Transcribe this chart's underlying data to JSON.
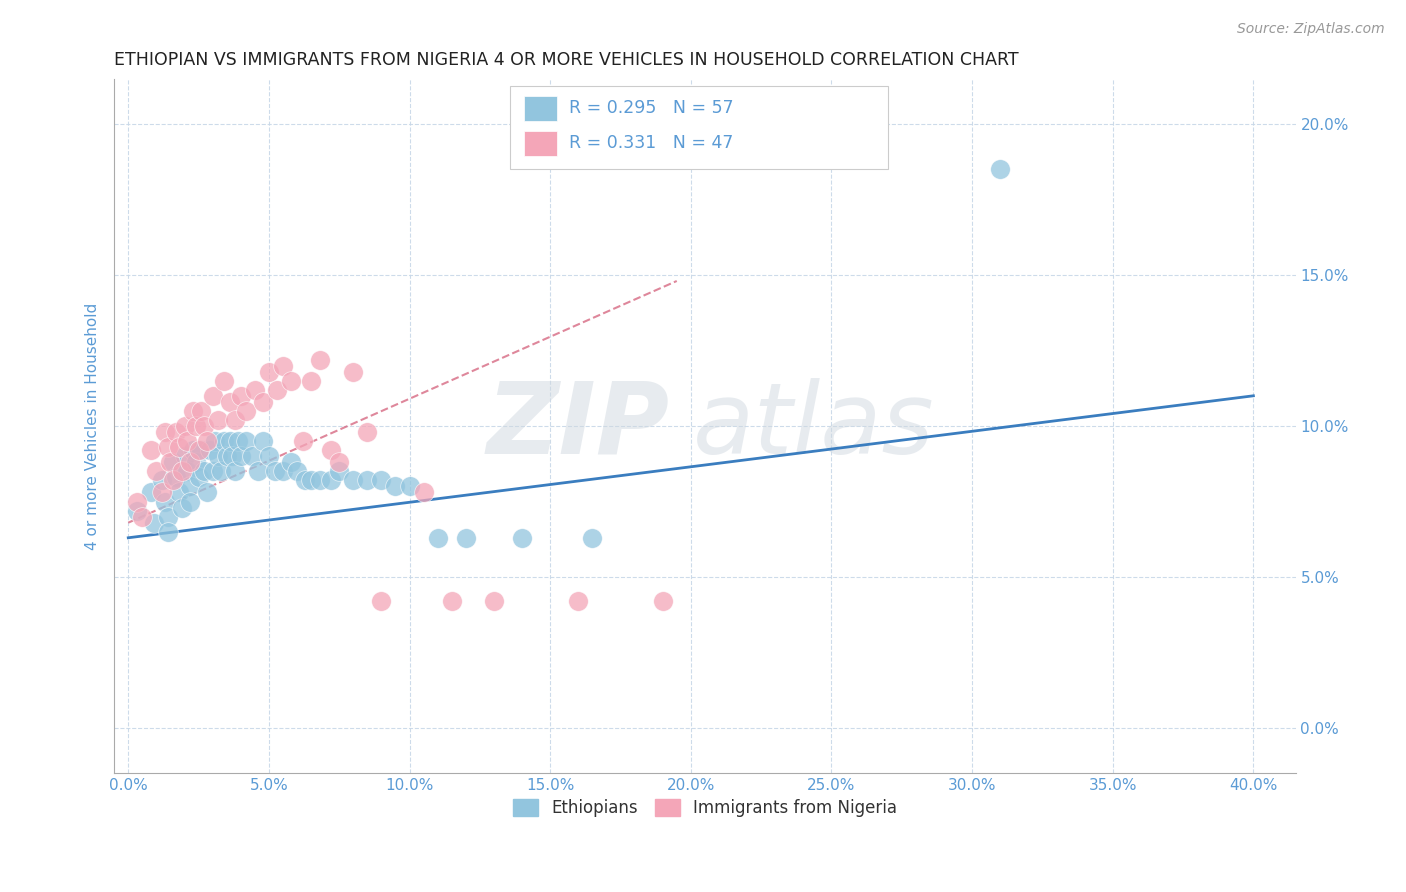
{
  "title": "ETHIOPIAN VS IMMIGRANTS FROM NIGERIA 4 OR MORE VEHICLES IN HOUSEHOLD CORRELATION CHART",
  "source": "Source: ZipAtlas.com",
  "xlabel_ticks": [
    0.0,
    0.05,
    0.1,
    0.15,
    0.2,
    0.25,
    0.3,
    0.35,
    0.4
  ],
  "ylabel_ticks": [
    0.0,
    0.05,
    0.1,
    0.15,
    0.2
  ],
  "xmin": -0.005,
  "xmax": 0.415,
  "ymin": -0.015,
  "ymax": 0.215,
  "r_ethiopian": 0.295,
  "n_ethiopian": 57,
  "r_nigerian": 0.331,
  "n_nigerian": 47,
  "ylabel": "4 or more Vehicles in Household",
  "legend_ethiopians": "Ethiopians",
  "legend_nigerians": "Immigrants from Nigeria",
  "blue_color": "#92c5de",
  "pink_color": "#f4a6b8",
  "blue_line_color": "#3a7dbf",
  "pink_line_color": "#d45f7a",
  "title_color": "#222222",
  "axis_color": "#5b9bd5",
  "ethiopian_x": [
    0.003,
    0.008,
    0.009,
    0.012,
    0.013,
    0.014,
    0.014,
    0.016,
    0.017,
    0.018,
    0.019,
    0.02,
    0.021,
    0.022,
    0.022,
    0.023,
    0.024,
    0.025,
    0.026,
    0.027,
    0.028,
    0.029,
    0.03,
    0.031,
    0.032,
    0.033,
    0.034,
    0.035,
    0.036,
    0.037,
    0.038,
    0.039,
    0.04,
    0.042,
    0.044,
    0.046,
    0.048,
    0.05,
    0.052,
    0.055,
    0.058,
    0.06,
    0.063,
    0.065,
    0.068,
    0.072,
    0.075,
    0.08,
    0.085,
    0.09,
    0.095,
    0.1,
    0.11,
    0.12,
    0.14,
    0.165,
    0.31
  ],
  "ethiopian_y": [
    0.072,
    0.078,
    0.068,
    0.082,
    0.075,
    0.07,
    0.065,
    0.088,
    0.083,
    0.078,
    0.073,
    0.09,
    0.085,
    0.08,
    0.075,
    0.092,
    0.088,
    0.083,
    0.092,
    0.085,
    0.078,
    0.092,
    0.085,
    0.095,
    0.09,
    0.085,
    0.095,
    0.09,
    0.095,
    0.09,
    0.085,
    0.095,
    0.09,
    0.095,
    0.09,
    0.085,
    0.095,
    0.09,
    0.085,
    0.085,
    0.088,
    0.085,
    0.082,
    0.082,
    0.082,
    0.082,
    0.085,
    0.082,
    0.082,
    0.082,
    0.08,
    0.08,
    0.063,
    0.063,
    0.063,
    0.063,
    0.185
  ],
  "nigerian_x": [
    0.003,
    0.005,
    0.008,
    0.01,
    0.012,
    0.013,
    0.014,
    0.015,
    0.016,
    0.017,
    0.018,
    0.019,
    0.02,
    0.021,
    0.022,
    0.023,
    0.024,
    0.025,
    0.026,
    0.027,
    0.028,
    0.03,
    0.032,
    0.034,
    0.036,
    0.038,
    0.04,
    0.042,
    0.045,
    0.048,
    0.05,
    0.053,
    0.055,
    0.058,
    0.062,
    0.065,
    0.068,
    0.072,
    0.075,
    0.08,
    0.085,
    0.09,
    0.105,
    0.115,
    0.13,
    0.16,
    0.19
  ],
  "nigerian_y": [
    0.075,
    0.07,
    0.092,
    0.085,
    0.078,
    0.098,
    0.093,
    0.088,
    0.082,
    0.098,
    0.093,
    0.085,
    0.1,
    0.095,
    0.088,
    0.105,
    0.1,
    0.092,
    0.105,
    0.1,
    0.095,
    0.11,
    0.102,
    0.115,
    0.108,
    0.102,
    0.11,
    0.105,
    0.112,
    0.108,
    0.118,
    0.112,
    0.12,
    0.115,
    0.095,
    0.115,
    0.122,
    0.092,
    0.088,
    0.118,
    0.098,
    0.042,
    0.078,
    0.042,
    0.042,
    0.042,
    0.042
  ],
  "blue_line_x": [
    0.0,
    0.4
  ],
  "blue_line_y": [
    0.063,
    0.11
  ],
  "pink_line_x": [
    0.0,
    0.195
  ],
  "pink_line_y": [
    0.068,
    0.148
  ]
}
